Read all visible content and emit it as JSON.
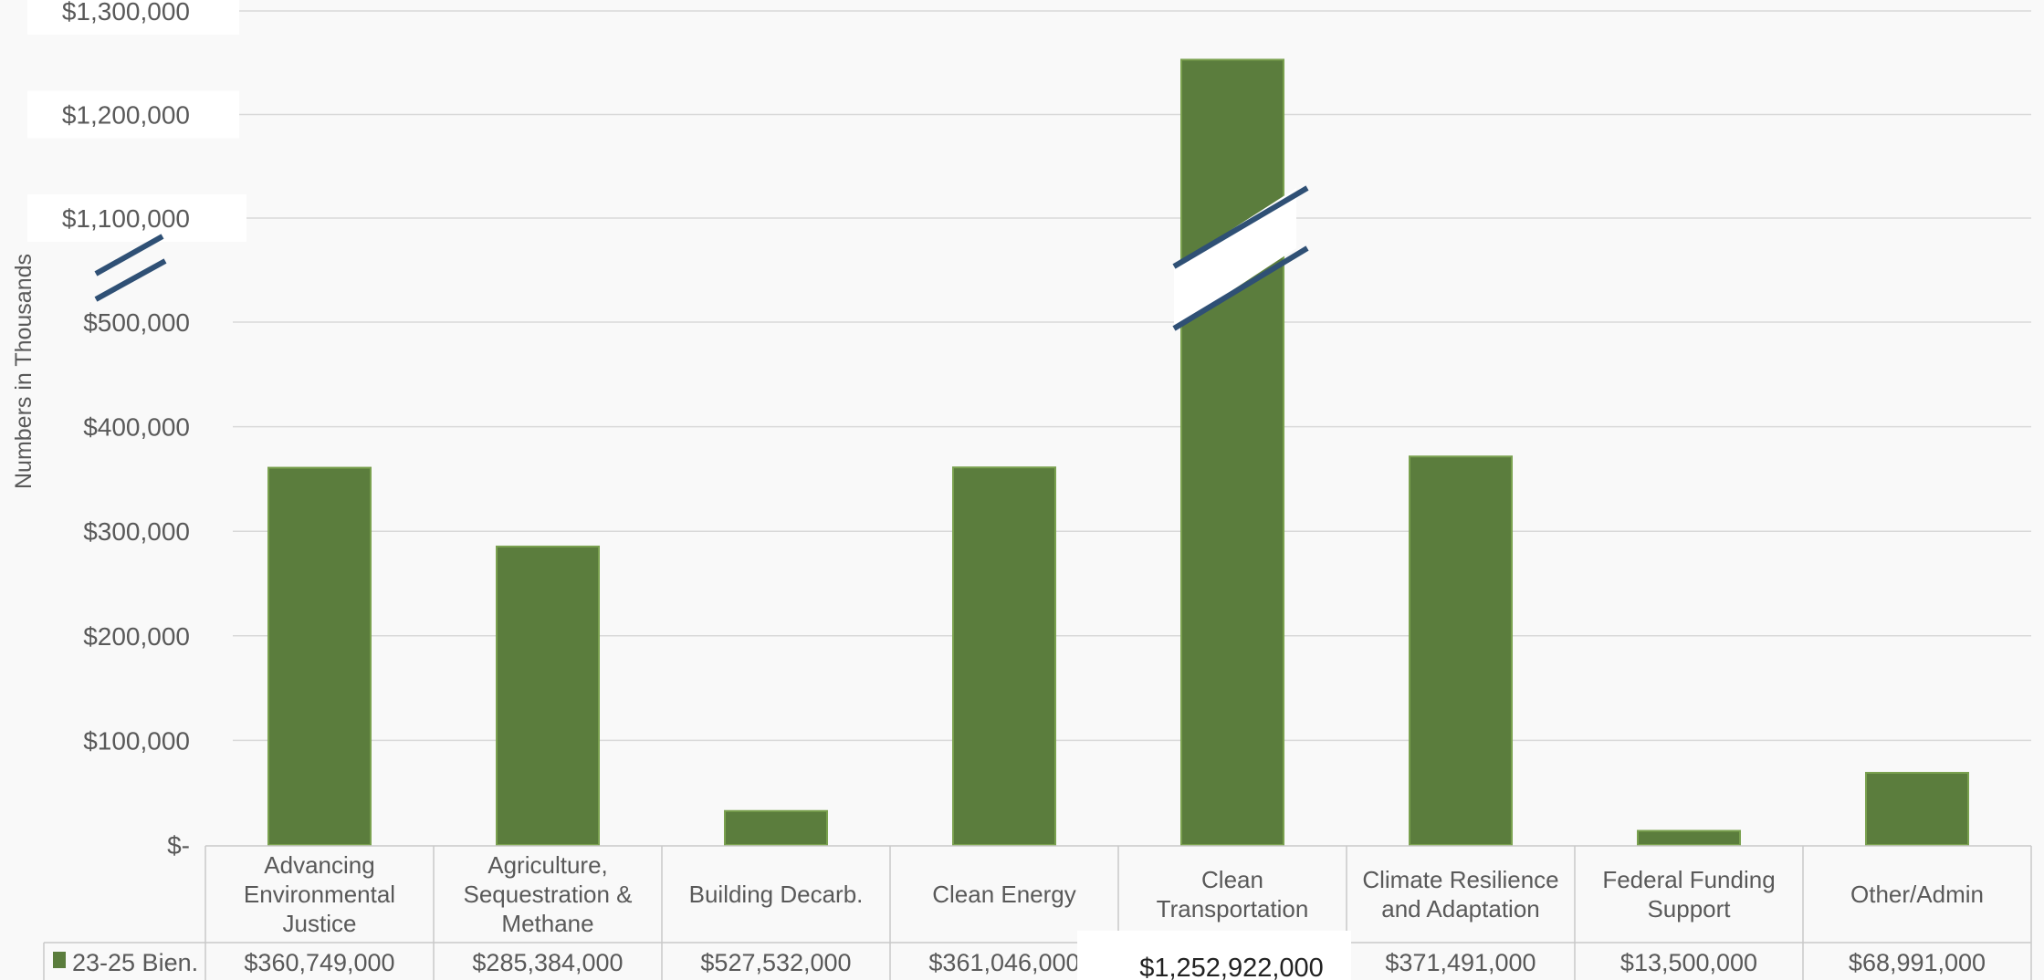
{
  "chart_data": {
    "type": "bar",
    "ylabel": "Numbers in Thousands",
    "categories": [
      [
        "Advancing",
        "Environmental",
        "Justice"
      ],
      [
        "Agriculture,",
        "Sequestration &",
        "Methane"
      ],
      [
        "Building Decarb."
      ],
      [
        "Clean Energy"
      ],
      [
        "Clean",
        "Transportation"
      ],
      [
        "Climate Resilience",
        "and Adaptation"
      ],
      [
        "Federal Funding",
        "Support"
      ],
      [
        "Other/Admin"
      ]
    ],
    "series": [
      {
        "name": "23-25 Bien.",
        "color": "#5b7d3d",
        "values": [
          360749,
          285384,
          527532,
          361046,
          1252922,
          371491,
          13500,
          68991
        ],
        "table_values": [
          "$360,749,000",
          "$285,384,000",
          "$527,532,000",
          "$361,046,000",
          "$1,252,922,000",
          "$371,491,000",
          "$13,500,000",
          "$68,991,000"
        ]
      }
    ],
    "y_ticks_lower": [
      {
        "value": 0,
        "label": "$-"
      },
      {
        "value": 100000,
        "label": "$100,000"
      },
      {
        "value": 200000,
        "label": "$200,000"
      },
      {
        "value": 300000,
        "label": "$300,000"
      },
      {
        "value": 400000,
        "label": "$400,000"
      },
      {
        "value": 500000,
        "label": "$500,000"
      }
    ],
    "y_ticks_upper": [
      {
        "value": 1100000,
        "label": "$1,100,000"
      },
      {
        "value": 1200000,
        "label": "$1,200,000"
      },
      {
        "value": 1300000,
        "label": "$1,300,000"
      }
    ],
    "axis_break": {
      "from": 500000,
      "to": 1100000
    },
    "ylim": [
      0,
      1300000
    ],
    "grid": true,
    "legend": "data table",
    "break_color": "#2f5075"
  }
}
